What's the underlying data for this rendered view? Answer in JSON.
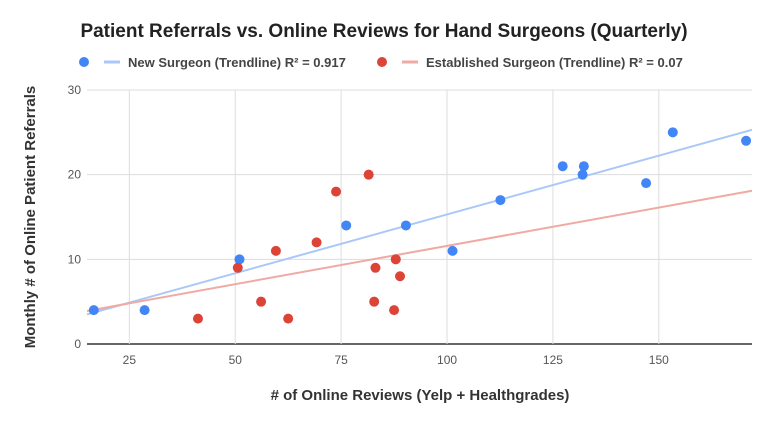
{
  "chart_data": {
    "type": "scatter",
    "title": "Patient Referrals vs. Online Reviews for Hand Surgeons (Quarterly)",
    "xlabel": "# of Online Reviews (Yelp + Healthgrades)",
    "ylabel": "Monthly # of Online Patient Referrals",
    "xlim": [
      15,
      172
    ],
    "ylim": [
      0,
      30
    ],
    "xticks": [
      25,
      50,
      75,
      100,
      125,
      150
    ],
    "yticks": [
      0,
      10,
      20,
      30
    ],
    "grid": true,
    "legend_position": "top",
    "series": [
      {
        "name": "New Surgeon",
        "color": "#4285f4",
        "trend_color": "#a9c8f8",
        "trend_label": "New Surgeon (Trendline) R² = 0.917",
        "trend": [
          [
            15,
            3.5
          ],
          [
            172,
            25.3
          ]
        ],
        "points": [
          [
            16.6,
            4
          ],
          [
            28.6,
            4
          ],
          [
            51,
            10
          ],
          [
            76.2,
            14
          ],
          [
            90.3,
            14
          ],
          [
            101.3,
            11
          ],
          [
            112.6,
            17
          ],
          [
            127.3,
            21
          ],
          [
            132.3,
            21
          ],
          [
            132,
            20
          ],
          [
            147,
            19
          ],
          [
            153.3,
            25
          ],
          [
            170.6,
            24
          ]
        ]
      },
      {
        "name": "Established Surgeon",
        "color": "#db4437",
        "trend_color": "#f0aaa4",
        "trend_label": "Established Surgeon (Trendline) R² = 0.07",
        "trend": [
          [
            15,
            3.9
          ],
          [
            172,
            18.1
          ]
        ],
        "points": [
          [
            41.2,
            3
          ],
          [
            50.6,
            9
          ],
          [
            56.1,
            5
          ],
          [
            59.6,
            11
          ],
          [
            62.5,
            3
          ],
          [
            69.2,
            12
          ],
          [
            73.8,
            18
          ],
          [
            81.5,
            20
          ],
          [
            82.8,
            5
          ],
          [
            83.1,
            9
          ],
          [
            87.5,
            4
          ],
          [
            87.9,
            10
          ],
          [
            88.9,
            8
          ]
        ]
      }
    ]
  }
}
